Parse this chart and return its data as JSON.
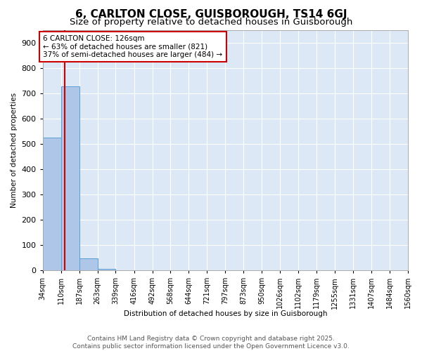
{
  "title": "6, CARLTON CLOSE, GUISBOROUGH, TS14 6GJ",
  "subtitle": "Size of property relative to detached houses in Guisborough",
  "xlabel": "Distribution of detached houses by size in Guisborough",
  "ylabel": "Number of detached properties",
  "bar_edges": [
    34,
    110,
    187,
    263,
    339,
    416,
    492,
    568,
    644,
    721,
    797,
    873,
    950,
    1026,
    1102,
    1179,
    1255,
    1331,
    1407,
    1484,
    1560
  ],
  "bar_values": [
    525,
    727,
    47,
    7,
    1,
    0,
    0,
    0,
    0,
    0,
    0,
    0,
    0,
    0,
    0,
    0,
    0,
    0,
    0,
    0
  ],
  "bar_color": "#aec6e8",
  "bar_edge_color": "#5a9fd4",
  "property_size": 126,
  "property_line_color": "#cc0000",
  "annotation_line1": "6 CARLTON CLOSE: 126sqm",
  "annotation_line2": "← 63% of detached houses are smaller (821)",
  "annotation_line3": "37% of semi-detached houses are larger (484) →",
  "annotation_box_color": "#cc0000",
  "annotation_text_color": "#000000",
  "ylim": [
    0,
    950
  ],
  "yticks": [
    0,
    100,
    200,
    300,
    400,
    500,
    600,
    700,
    800,
    900
  ],
  "fig_bg_color": "#ffffff",
  "plot_bg_color": "#dce8f5",
  "grid_color": "#ffffff",
  "footer_text": "Contains HM Land Registry data © Crown copyright and database right 2025.\nContains public sector information licensed under the Open Government Licence v3.0.",
  "title_fontsize": 11,
  "subtitle_fontsize": 9.5,
  "axis_label_fontsize": 7.5,
  "tick_fontsize": 7,
  "annotation_fontsize": 7.5,
  "footer_fontsize": 6.5
}
